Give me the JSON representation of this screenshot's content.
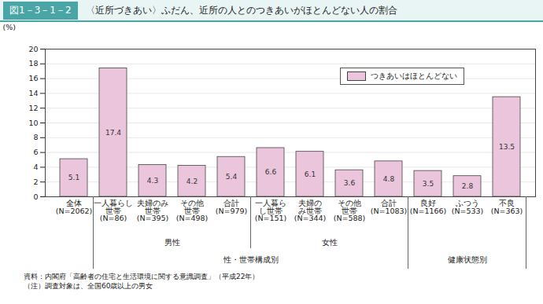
{
  "chart_data": {
    "type": "bar",
    "figure_number": "図1－3－1－2",
    "title": "〈近所づきあい〉ふだん、近所の人とのつきあいがほとんどない人の割合",
    "ylabel": "(%)",
    "categories": [
      "全体\n(N=2062)",
      "一人暮らし\n世帯\n(N=86)",
      "夫婦のみ\n世帯\n(N=395)",
      "その他\n世帯\n(N=498)",
      "合計\n(N=979)",
      "一人暮ら\nし世帯\n(N=151)",
      "夫婦の\nみ世帯\n(N=344)",
      "その他\n世帯\n(N=588)",
      "合計\n(N=1083)",
      "良好\n(N=1166)",
      "ふつう\n(N=533)",
      "不良\n(N=363)"
    ],
    "series": [
      {
        "name": "つきあいはほとんどない",
        "color": "#ebc5dc",
        "values": [
          5.1,
          17.4,
          4.3,
          4.2,
          5.4,
          6.6,
          6.1,
          3.6,
          4.8,
          3.5,
          2.8,
          13.5
        ]
      }
    ],
    "groups": [
      {
        "label": "性・世帯構成別",
        "start": 1,
        "end": 8,
        "subgroups": [
          {
            "label": "男性",
            "start": 1,
            "end": 4
          },
          {
            "label": "女性",
            "start": 5,
            "end": 8
          }
        ]
      },
      {
        "label": "健康状態別",
        "start": 9,
        "end": 11
      }
    ],
    "ylim": [
      0,
      20
    ],
    "yticks": [
      0,
      2,
      4,
      6,
      8,
      10,
      12,
      14,
      16,
      18,
      20
    ],
    "grid": true,
    "legend": "top-right",
    "data_labels": true,
    "notes": [
      "資料：内閣府「高齢者の住宅と生活環境に関する意識調査」（平成22年）",
      "（注）調査対象は、全国60歳以上の男女"
    ]
  }
}
